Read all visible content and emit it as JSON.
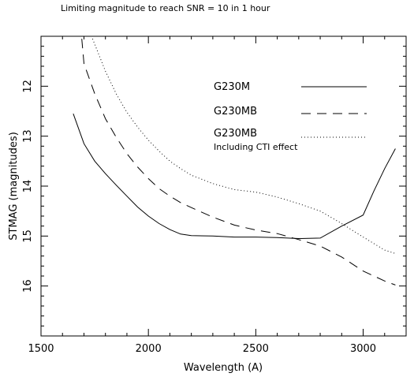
{
  "chart_data": {
    "type": "line",
    "title": "Limiting magnitude to reach SNR = 10 in 1 hour",
    "xlabel": "Wavelength (A)",
    "ylabel": "STMAG (magnitudes)",
    "xlim": [
      1500,
      3200
    ],
    "ylim": [
      17,
      11
    ],
    "y_inverted": true,
    "x_ticks": [
      1500,
      2000,
      2500,
      3000
    ],
    "y_ticks": [
      12,
      13,
      14,
      15,
      16
    ],
    "grid": false,
    "legend_position": "upper-right inside",
    "series": [
      {
        "name": "G230M",
        "line_style": "solid",
        "x": [
          1650,
          1700,
          1750,
          1800,
          1850,
          1900,
          1950,
          2000,
          2050,
          2100,
          2150,
          2200,
          2300,
          2400,
          2500,
          2600,
          2700,
          2800,
          2900,
          3000,
          3050,
          3100,
          3150
        ],
        "y": [
          12.55,
          13.15,
          13.5,
          13.75,
          13.98,
          14.2,
          14.42,
          14.6,
          14.75,
          14.87,
          14.96,
          14.99,
          15.0,
          15.02,
          15.02,
          15.03,
          15.05,
          15.04,
          14.8,
          14.58,
          14.1,
          13.65,
          13.25
        ]
      },
      {
        "name": "G230MB",
        "line_style": "dashed",
        "x": [
          1690,
          1700,
          1750,
          1800,
          1850,
          1900,
          1950,
          2000,
          2050,
          2100,
          2150,
          2200,
          2300,
          2400,
          2500,
          2600,
          2700,
          2800,
          2900,
          3000,
          3100,
          3150
        ],
        "y": [
          11.05,
          11.55,
          12.15,
          12.65,
          13.02,
          13.35,
          13.62,
          13.85,
          14.05,
          14.2,
          14.33,
          14.43,
          14.62,
          14.78,
          14.88,
          14.95,
          15.07,
          15.2,
          15.42,
          15.7,
          15.9,
          15.98
        ]
      },
      {
        "name": "G230MB",
        "sublabel": "Including CTI effect",
        "line_style": "dotted",
        "x": [
          1740,
          1800,
          1850,
          1900,
          1950,
          2000,
          2050,
          2100,
          2150,
          2200,
          2300,
          2400,
          2500,
          2600,
          2700,
          2800,
          2900,
          3000,
          3100,
          3150
        ],
        "y": [
          11.05,
          11.7,
          12.15,
          12.52,
          12.82,
          13.08,
          13.3,
          13.5,
          13.65,
          13.78,
          13.95,
          14.07,
          14.12,
          14.22,
          14.35,
          14.5,
          14.75,
          15.02,
          15.28,
          15.35
        ]
      }
    ]
  }
}
